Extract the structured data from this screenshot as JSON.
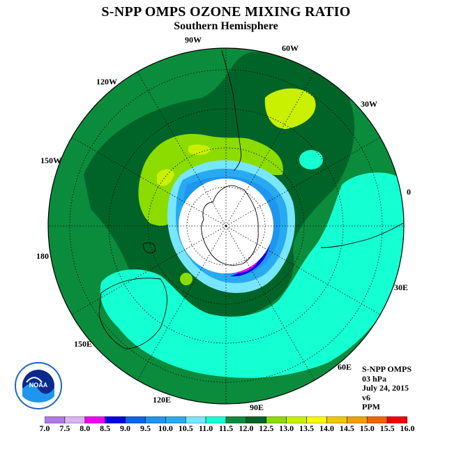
{
  "title": "S-NPP OMPS OZONE MIXING RATIO",
  "subtitle": "Southern Hemisphere",
  "longitude_labels": [
    "90W",
    "60W",
    "120W",
    "30W",
    "150W",
    "0",
    "180",
    "30E",
    "150E",
    "60E",
    "120E",
    "90E"
  ],
  "info": {
    "instrument": "S-NPP OMPS",
    "level": "03 hPa",
    "date": "July 24, 2015",
    "version": "v6",
    "units": "PPM"
  },
  "logo": {
    "text": "NOAA",
    "ring_text": "NATIONAL OCEANIC AND ATMOSPHERIC ADMINISTRATION · U.S. DEPARTMENT OF COMMERCE"
  },
  "colorbar": {
    "ticks": [
      "7.0",
      "7.5",
      "8.0",
      "8.5",
      "9.0",
      "9.5",
      "10.0",
      "10.5",
      "11.0",
      "11.5",
      "12.0",
      "12.5",
      "13.0",
      "13.5",
      "14.0",
      "14.5",
      "15.0",
      "15.5",
      "16.0"
    ],
    "colors": [
      "#b07ae8",
      "#dcb4f0",
      "#f000f0",
      "#0000e6",
      "#0a64ee",
      "#1e96f0",
      "#28aaf0",
      "#78e6ff",
      "#14ffd2",
      "#0a8c3c",
      "#006428",
      "#8cdc00",
      "#c8f000",
      "#fafa00",
      "#f0c800",
      "#f0a000",
      "#f06400",
      "#f00000",
      "#8c5a32"
    ]
  },
  "colors": {
    "background": "#ffffff",
    "outer_field": "#0a8c3c",
    "no_data": "#ffffff"
  }
}
